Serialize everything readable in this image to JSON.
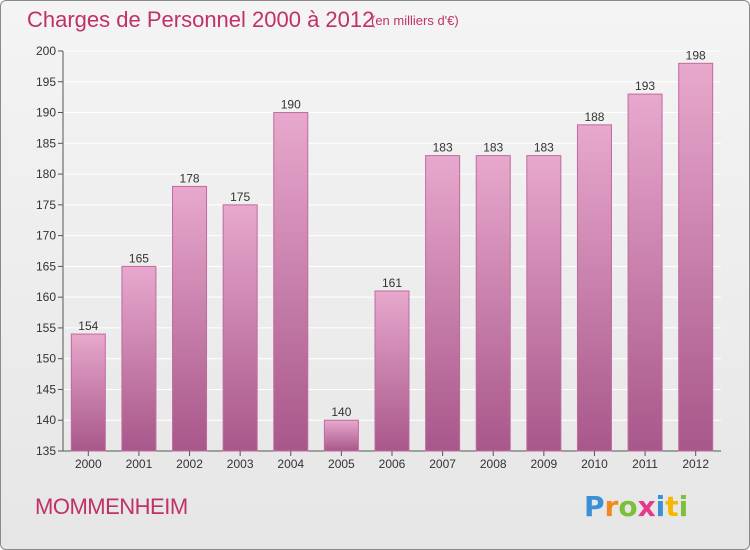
{
  "header": {
    "title": "Charges de Personnel 2000 à 2012",
    "subtitle": "(en milliers d'€)"
  },
  "footer": {
    "commune": "MOMMENHEIM",
    "logo_text": "Proxiti",
    "logo_letters": [
      {
        "ch": "P",
        "color": "#3a8fd6"
      },
      {
        "ch": "r",
        "color": "#f08a1c"
      },
      {
        "ch": "o",
        "color": "#7cbf3a"
      },
      {
        "ch": "x",
        "color": "#e5398a"
      },
      {
        "ch": "i",
        "color": "#3a8fd6"
      },
      {
        "ch": "t",
        "color": "#f5b800"
      },
      {
        "ch": "i",
        "color": "#7cbf3a"
      }
    ]
  },
  "colors": {
    "accent": "#c0306a",
    "bar_top": "#e8a8cd",
    "bar_bottom": "#a8578a",
    "grid": "#ffffff"
  },
  "chart_data": {
    "type": "bar",
    "title": "Charges de Personnel 2000 à 2012",
    "subtitle": "(en milliers d'€)",
    "categories": [
      "2000",
      "2001",
      "2002",
      "2003",
      "2004",
      "2005",
      "2006",
      "2007",
      "2008",
      "2009",
      "2010",
      "2011",
      "2012"
    ],
    "values": [
      154,
      165,
      178,
      175,
      190,
      140,
      161,
      183,
      183,
      183,
      188,
      193,
      198
    ],
    "ylim": [
      135,
      200
    ],
    "yticks": [
      135,
      140,
      145,
      150,
      155,
      160,
      165,
      170,
      175,
      180,
      185,
      190,
      195,
      200
    ],
    "grid": true,
    "data_labels": true
  }
}
